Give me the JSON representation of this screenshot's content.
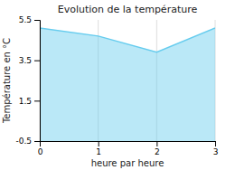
{
  "chart_data": {
    "type": "area",
    "title": "Evolution de la température",
    "xlabel": "heure par heure",
    "ylabel": "Température en °C",
    "x": [
      0,
      1,
      2,
      3
    ],
    "values": [
      5.1,
      4.7,
      3.9,
      5.1
    ],
    "color": "#66ccee",
    "xlim": [
      0,
      3
    ],
    "ylim": [
      -0.5,
      5.5
    ],
    "xticks": [
      0,
      1,
      2,
      3
    ],
    "yticks": [
      -0.5,
      1.5,
      3.5,
      5.5
    ],
    "grid": "x"
  }
}
